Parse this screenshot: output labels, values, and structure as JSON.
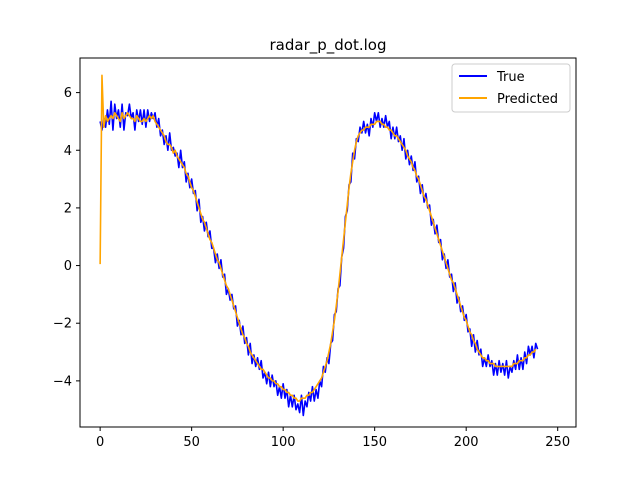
{
  "chart_data": {
    "type": "line",
    "title": "radar_p_dot.log",
    "xlabel": "",
    "ylabel": "",
    "xlim": [
      -11,
      260
    ],
    "ylim": [
      -5.6,
      7.2
    ],
    "xticks": [
      0,
      50,
      100,
      150,
      200,
      250
    ],
    "yticks": [
      -4,
      -2,
      0,
      2,
      4,
      6
    ],
    "xtick_labels": [
      "0",
      "50",
      "100",
      "150",
      "200",
      "250"
    ],
    "ytick_labels": [
      "−4",
      "−2",
      "0",
      "2",
      "4",
      "6"
    ],
    "grid": false,
    "legend_position": "top-right",
    "series": [
      {
        "name": "True",
        "color": "#0000ff",
        "x_start": 0,
        "x_step": 1,
        "values": [
          5.0,
          4.7,
          5.0,
          4.9,
          5.2,
          5.1,
          5.4,
          5.0,
          5.4,
          5.3,
          5.1,
          4.9,
          5.4,
          5.0,
          5.2,
          5.4,
          5.3,
          5.2,
          5.1,
          5.0,
          5.3,
          5.2,
          5.1,
          5.0,
          5.2,
          5.0,
          5.1,
          5.3,
          5.2,
          5.3,
          5.1,
          4.9,
          4.8,
          4.7,
          4.6,
          4.5,
          4.3,
          4.2,
          4.3,
          4.1,
          3.9,
          4.1,
          3.8,
          3.6,
          3.7,
          3.5,
          3.4,
          3.2,
          3.1,
          2.9,
          2.7,
          2.6,
          2.4,
          2.1,
          2.0,
          1.8,
          1.6,
          1.4,
          1.3,
          1.1,
          0.9,
          0.8,
          0.5,
          0.4,
          0.2,
          0.1,
          -0.1,
          -0.3,
          -0.5,
          -0.7,
          -0.9,
          -1.0,
          -1.3,
          -1.4,
          -1.6,
          -1.8,
          -2.0,
          -2.2,
          -2.4,
          -2.6,
          -2.7,
          -2.9,
          -3.0,
          -3.1,
          -3.2,
          -3.3,
          -3.4,
          -3.5,
          -3.6,
          -3.7,
          -3.8,
          -3.8,
          -3.9,
          -4.0,
          -4.1,
          -4.1,
          -4.2,
          -4.2,
          -4.3,
          -4.4,
          -4.4,
          -4.5,
          -4.5,
          -4.6,
          -4.6,
          -4.7,
          -4.8,
          -4.9,
          -5.0,
          -4.9,
          -4.8,
          -4.9,
          -4.8,
          -4.7,
          -4.6,
          -4.6,
          -4.5,
          -4.5,
          -4.4,
          -4.3,
          -4.2,
          -4.0,
          -3.8,
          -3.6,
          -3.4,
          -3.1,
          -2.8,
          -2.4,
          -2.0,
          -1.5,
          -1.0,
          -0.4,
          0.2,
          0.8,
          1.4,
          2.0,
          2.6,
          3.1,
          3.6,
          4.0,
          4.3,
          4.5,
          4.6,
          4.7,
          4.7,
          4.8,
          4.8,
          4.8,
          4.9,
          5.0,
          5.0,
          5.1,
          5.1,
          5.1,
          5.0,
          5.0,
          4.9,
          4.9,
          4.8,
          4.7,
          4.7,
          4.6,
          4.5,
          4.4,
          4.3,
          4.2,
          4.1,
          4.0,
          3.9,
          3.7,
          3.6,
          3.4,
          3.3,
          3.1,
          3.0,
          2.8,
          2.6,
          2.4,
          2.2,
          2.1,
          1.9,
          1.7,
          1.5,
          1.3,
          1.1,
          0.9,
          0.7,
          0.5,
          0.3,
          0.1,
          -0.1,
          -0.3,
          -0.5,
          -0.7,
          -0.9,
          -1.0,
          -1.2,
          -1.4,
          -1.6,
          -1.8,
          -2.0,
          -2.1,
          -2.3,
          -2.5,
          -2.6,
          -2.8,
          -2.9,
          -3.0,
          -3.1,
          -3.2,
          -3.3,
          -3.3,
          -3.4,
          -3.4,
          -3.5,
          -3.5,
          -3.5,
          -3.6,
          -3.6,
          -3.6,
          -3.6,
          -3.6,
          -3.6,
          -3.6,
          -3.6,
          -3.5,
          -3.5,
          -3.5,
          -3.4,
          -3.4,
          -3.3,
          -3.3,
          -3.2,
          -3.2,
          -3.1,
          -3.0,
          -3.0,
          -2.9,
          -2.8,
          -2.7
        ],
        "noise": [
          0.0,
          0.0,
          0.1,
          -0.1,
          0.2,
          -0.2,
          0.3,
          -0.3,
          0.2,
          -0.2,
          0.3,
          -0.1,
          0.2,
          -0.3,
          0.1,
          -0.2,
          0.3,
          -0.1,
          0.2,
          -0.3,
          0.1,
          -0.2,
          0.3,
          -0.1,
          0.2,
          -0.2,
          0.3,
          -0.3,
          0.1,
          -0.2,
          0.2,
          -0.1,
          0.3,
          -0.2,
          0.1,
          -0.3,
          0.2,
          -0.2,
          0.3,
          -0.1,
          0.2,
          -0.3,
          0.1,
          -0.2,
          0.3,
          -0.1,
          0.2,
          -0.3,
          0.1,
          -0.2,
          0.3,
          -0.1,
          0.2,
          -0.2,
          0.3,
          -0.3,
          0.1,
          -0.2,
          0.2,
          -0.1,
          0.3,
          -0.2,
          0.1,
          -0.3,
          0.2,
          -0.2,
          0.3,
          -0.1,
          0.2,
          -0.3,
          0.1,
          -0.2,
          0.3,
          -0.1,
          0.2,
          -0.3,
          0.1,
          -0.2,
          0.3,
          -0.1,
          0.2,
          -0.2,
          0.3,
          -0.3,
          0.1,
          -0.2,
          0.2,
          -0.1,
          0.3,
          -0.2,
          0.1,
          -0.3,
          0.2,
          -0.2,
          0.3,
          -0.1,
          0.2,
          -0.3,
          0.1,
          -0.2,
          0.3,
          -0.1,
          0.2,
          -0.3,
          0.1,
          -0.2,
          0.3,
          -0.1,
          0.2,
          -0.2,
          0.3,
          -0.3,
          0.1,
          -0.2,
          0.2,
          -0.1,
          0.3,
          -0.2,
          0.1,
          -0.3,
          0.2,
          -0.2,
          0.3,
          -0.1,
          0.2,
          -0.3,
          0.1,
          -0.2,
          0.3,
          -0.1,
          0.2,
          -0.3,
          0.1,
          -0.2,
          0.3,
          -0.1,
          0.2,
          -0.2,
          0.3,
          -0.3,
          0.1,
          -0.2,
          0.2,
          -0.1,
          0.3,
          -0.2,
          0.1,
          -0.3,
          0.2,
          -0.2,
          0.3,
          -0.1,
          0.2,
          -0.3,
          0.1,
          -0.2,
          0.3,
          -0.1,
          0.2,
          -0.3,
          0.1,
          -0.2,
          0.3,
          -0.1,
          0.2,
          -0.2,
          0.3,
          -0.3,
          0.1,
          -0.2,
          0.2,
          -0.1,
          0.3,
          -0.2,
          0.1,
          -0.3,
          0.2,
          -0.2,
          0.3,
          -0.1,
          0.2,
          -0.3,
          0.1,
          -0.2,
          0.3,
          -0.1,
          0.2,
          -0.3,
          0.1,
          -0.2,
          0.3,
          -0.1,
          0.2,
          -0.2,
          0.3,
          -0.3,
          0.1,
          -0.2,
          0.2,
          -0.1,
          0.3,
          -0.2,
          0.1,
          -0.3,
          0.2,
          -0.2,
          0.3,
          -0.1,
          0.2,
          -0.3,
          0.1,
          -0.2,
          0.3,
          -0.1,
          0.2,
          -0.3,
          0.1,
          -0.2,
          0.3,
          -0.1,
          0.2,
          -0.2,
          0.3,
          -0.3,
          0.1,
          -0.2,
          0.2,
          -0.1,
          0.3,
          -0.2,
          0.1,
          -0.3,
          0.2,
          -0.2,
          0.3,
          -0.1,
          0.2,
          -0.3,
          0.1,
          -0.2,
          0.3,
          -0.1,
          0.2,
          -0.3,
          0.1,
          -0.2,
          0.3,
          -0.1
        ]
      },
      {
        "name": "Predicted",
        "color": "#ffa500",
        "x_start": 0,
        "x_step": 1,
        "values": [
          0.05,
          6.6,
          4.8,
          5.2,
          5.0,
          5.1,
          5.2,
          5.1,
          5.3,
          5.2,
          5.1,
          5.0,
          5.3,
          5.1,
          5.2,
          5.3,
          5.2,
          5.1,
          5.1,
          5.0,
          5.2,
          5.1,
          5.0,
          5.0,
          5.1,
          5.0,
          5.1,
          5.2,
          5.1,
          5.2,
          5.0,
          4.9,
          4.8,
          4.7,
          4.6,
          4.5,
          4.3,
          4.2,
          4.2,
          4.1,
          3.9,
          4.0,
          3.8,
          3.7,
          3.6,
          3.5,
          3.4,
          3.2,
          3.1,
          2.9,
          2.7,
          2.6,
          2.4,
          2.2,
          2.0,
          1.8,
          1.6,
          1.5,
          1.3,
          1.1,
          0.9,
          0.8,
          0.6,
          0.4,
          0.2,
          0.1,
          -0.1,
          -0.3,
          -0.5,
          -0.7,
          -0.8,
          -1.0,
          -1.2,
          -1.4,
          -1.6,
          -1.8,
          -2.0,
          -2.2,
          -2.4,
          -2.5,
          -2.7,
          -2.8,
          -3.0,
          -3.1,
          -3.2,
          -3.3,
          -3.4,
          -3.5,
          -3.6,
          -3.6,
          -3.7,
          -3.8,
          -3.9,
          -3.9,
          -4.0,
          -4.0,
          -4.1,
          -4.1,
          -4.2,
          -4.2,
          -4.3,
          -4.3,
          -4.4,
          -4.4,
          -4.5,
          -4.5,
          -4.6,
          -4.6,
          -4.7,
          -4.7,
          -4.6,
          -4.6,
          -4.6,
          -4.5,
          -4.5,
          -4.4,
          -4.4,
          -4.3,
          -4.2,
          -4.1,
          -4.0,
          -3.9,
          -3.7,
          -3.5,
          -3.3,
          -3.0,
          -2.7,
          -2.3,
          -1.9,
          -1.4,
          -0.9,
          -0.3,
          0.3,
          0.9,
          1.5,
          2.1,
          2.7,
          3.2,
          3.6,
          4.0,
          4.3,
          4.5,
          4.6,
          4.7,
          4.7,
          4.8,
          4.8,
          4.8,
          4.9,
          4.9,
          4.9,
          5.0,
          5.0,
          5.0,
          4.9,
          4.9,
          4.8,
          4.8,
          4.7,
          4.7,
          4.6,
          4.5,
          4.5,
          4.4,
          4.3,
          4.2,
          4.1,
          4.0,
          3.8,
          3.7,
          3.6,
          3.4,
          3.3,
          3.1,
          3.0,
          2.8,
          2.6,
          2.4,
          2.3,
          2.1,
          1.9,
          1.7,
          1.5,
          1.3,
          1.1,
          0.9,
          0.7,
          0.5,
          0.3,
          0.1,
          -0.1,
          -0.3,
          -0.5,
          -0.6,
          -0.8,
          -1.0,
          -1.2,
          -1.4,
          -1.6,
          -1.8,
          -1.9,
          -2.1,
          -2.3,
          -2.4,
          -2.6,
          -2.7,
          -2.9,
          -3.0,
          -3.1,
          -3.2,
          -3.2,
          -3.3,
          -3.3,
          -3.4,
          -3.4,
          -3.4,
          -3.5,
          -3.5,
          -3.5,
          -3.5,
          -3.5,
          -3.5,
          -3.5,
          -3.5,
          -3.5,
          -3.5,
          -3.4,
          -3.4,
          -3.4,
          -3.3,
          -3.3,
          -3.3,
          -3.2,
          -3.2,
          -3.1,
          -3.1,
          -3.0,
          -3.0,
          -2.9
        ],
        "noise_scale": 0.35
      }
    ]
  }
}
